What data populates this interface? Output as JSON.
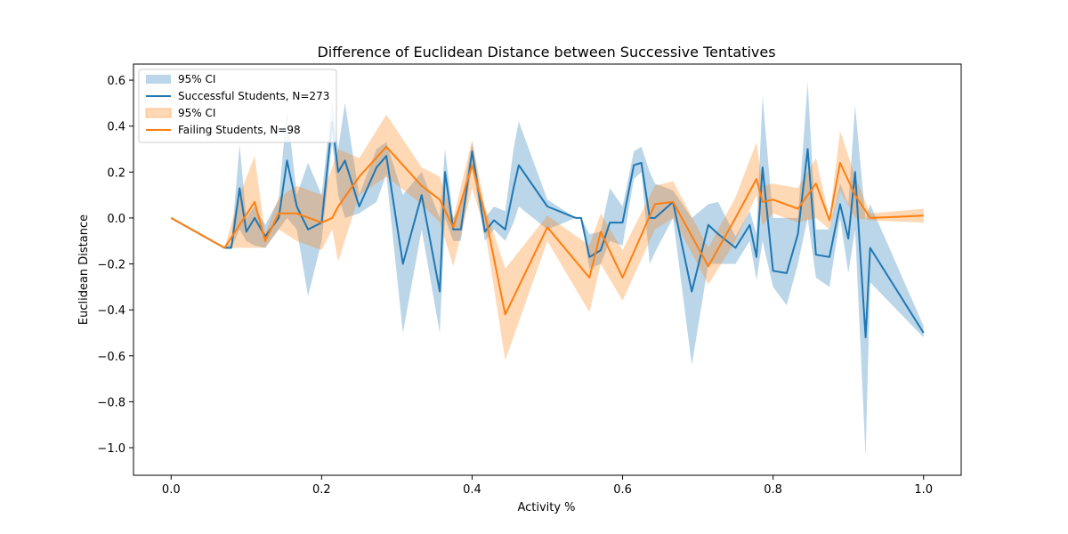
{
  "chart_data": {
    "type": "line",
    "title": "Difference of Euclidean Distance between Successive Tentatives",
    "xlabel": "Activity %",
    "ylabel": "Euclidean Distance",
    "xlim": [
      -0.05,
      1.05
    ],
    "ylim": [
      -1.12,
      0.67
    ],
    "xticks": [
      0.0,
      0.2,
      0.4,
      0.6,
      0.8,
      1.0
    ],
    "xtick_labels": [
      "0.0",
      "0.2",
      "0.4",
      "0.6",
      "0.8",
      "1.0"
    ],
    "yticks": [
      0.6,
      0.4,
      0.2,
      0.0,
      -0.2,
      -0.4,
      -0.6,
      -0.8,
      -1.0
    ],
    "ytick_labels": [
      "0.6",
      "0.4",
      "0.2",
      "0.0",
      "−0.2",
      "−0.4",
      "−0.6",
      "−0.8",
      "−1.0"
    ],
    "grid": false,
    "legend_position": "top-left",
    "series": [
      {
        "name": "Successful Students, N=273",
        "ci_label": "95% CI",
        "color": "#1f77b4",
        "x": [
          0.0,
          0.071,
          0.08,
          0.091,
          0.1,
          0.111,
          0.125,
          0.143,
          0.154,
          0.167,
          0.182,
          0.2,
          0.214,
          0.222,
          0.231,
          0.25,
          0.273,
          0.286,
          0.308,
          0.333,
          0.357,
          0.364,
          0.375,
          0.385,
          0.4,
          0.417,
          0.429,
          0.444,
          0.455,
          0.462,
          0.5,
          0.538,
          0.545,
          0.556,
          0.571,
          0.583,
          0.6,
          0.615,
          0.625,
          0.636,
          0.643,
          0.667,
          0.692,
          0.714,
          0.727,
          0.75,
          0.769,
          0.778,
          0.786,
          0.8,
          0.818,
          0.833,
          0.846,
          0.857,
          0.875,
          0.889,
          0.9,
          0.909,
          0.923,
          0.929,
          1.0
        ],
        "y": [
          0.0,
          -0.13,
          -0.13,
          0.13,
          -0.06,
          0.0,
          -0.08,
          0.0,
          0.25,
          0.05,
          -0.05,
          -0.02,
          0.42,
          0.2,
          0.25,
          0.05,
          0.22,
          0.27,
          -0.2,
          0.1,
          -0.32,
          0.2,
          -0.05,
          -0.05,
          0.29,
          -0.06,
          -0.01,
          -0.05,
          0.13,
          0.23,
          0.05,
          0.0,
          0.0,
          -0.17,
          -0.14,
          -0.02,
          -0.02,
          0.23,
          0.24,
          0.0,
          0.0,
          0.07,
          -0.32,
          -0.03,
          -0.07,
          -0.13,
          -0.03,
          -0.17,
          0.22,
          -0.23,
          -0.24,
          -0.07,
          0.3,
          -0.16,
          -0.17,
          0.06,
          -0.09,
          0.2,
          -0.52,
          -0.13,
          -0.5
        ],
        "ci_low": [
          0.0,
          -0.13,
          -0.13,
          -0.05,
          -0.1,
          -0.12,
          -0.13,
          -0.05,
          0.0,
          -0.05,
          -0.34,
          -0.1,
          0.33,
          0.1,
          0.0,
          0.02,
          0.07,
          0.19,
          -0.5,
          -0.05,
          -0.5,
          0.0,
          -0.1,
          -0.1,
          0.23,
          -0.1,
          -0.05,
          -0.1,
          -0.02,
          0.05,
          -0.05,
          0.0,
          0.0,
          -0.22,
          -0.2,
          -0.1,
          -0.12,
          0.17,
          0.2,
          -0.2,
          -0.15,
          0.0,
          -0.64,
          -0.2,
          -0.2,
          -0.2,
          -0.1,
          -0.27,
          -0.1,
          -0.3,
          -0.38,
          -0.2,
          0.0,
          -0.26,
          -0.3,
          0.0,
          -0.24,
          -0.05,
          -1.04,
          -0.28,
          -0.52
        ],
        "ci_high": [
          0.0,
          -0.13,
          -0.11,
          0.32,
          0.0,
          0.05,
          -0.03,
          0.08,
          0.48,
          0.1,
          0.24,
          0.1,
          0.52,
          0.3,
          0.5,
          0.1,
          0.3,
          0.33,
          0.1,
          0.2,
          0.0,
          0.3,
          0.0,
          0.05,
          0.33,
          0.0,
          0.05,
          0.03,
          0.3,
          0.42,
          0.08,
          0.0,
          0.0,
          -0.07,
          -0.06,
          0.13,
          0.05,
          0.29,
          0.31,
          0.2,
          0.15,
          0.12,
          0.0,
          0.06,
          0.07,
          -0.08,
          0.03,
          -0.07,
          0.53,
          0.0,
          0.0,
          0.0,
          0.59,
          -0.05,
          -0.05,
          0.15,
          0.06,
          0.49,
          -0.01,
          0.06,
          -0.47
        ]
      },
      {
        "name": "Failing Students, N=98",
        "ci_label": "95% CI",
        "color": "#ff7f0e",
        "x": [
          0.0,
          0.071,
          0.091,
          0.111,
          0.125,
          0.143,
          0.167,
          0.2,
          0.214,
          0.222,
          0.25,
          0.286,
          0.333,
          0.357,
          0.375,
          0.4,
          0.417,
          0.444,
          0.5,
          0.556,
          0.571,
          0.6,
          0.643,
          0.667,
          0.714,
          0.75,
          0.778,
          0.786,
          0.8,
          0.833,
          0.857,
          0.875,
          0.889,
          0.909,
          0.929,
          1.0
        ],
        "y": [
          0.0,
          -0.13,
          -0.03,
          0.07,
          -0.1,
          0.02,
          0.02,
          -0.02,
          0.0,
          0.05,
          0.18,
          0.31,
          0.14,
          0.08,
          -0.04,
          0.23,
          0.02,
          -0.42,
          -0.04,
          -0.26,
          -0.06,
          -0.26,
          0.06,
          0.07,
          -0.21,
          0.0,
          0.17,
          0.07,
          0.08,
          0.04,
          0.15,
          -0.01,
          0.24,
          0.1,
          0.0,
          0.01
        ],
        "ci_low": [
          0.0,
          -0.13,
          -0.13,
          -0.13,
          -0.13,
          -0.05,
          -0.1,
          -0.14,
          -0.05,
          -0.19,
          0.1,
          0.18,
          0.06,
          -0.02,
          -0.21,
          0.13,
          -0.05,
          -0.62,
          -0.1,
          -0.41,
          -0.2,
          -0.36,
          -0.05,
          0.0,
          -0.29,
          -0.1,
          0.1,
          -0.03,
          0.02,
          -0.02,
          0.0,
          -0.05,
          0.12,
          0.0,
          -0.01,
          -0.02
        ],
        "ci_high": [
          0.0,
          -0.13,
          0.1,
          0.27,
          -0.07,
          0.09,
          0.14,
          0.1,
          0.22,
          0.3,
          0.26,
          0.45,
          0.22,
          0.18,
          0.0,
          0.34,
          0.05,
          -0.22,
          0.01,
          -0.12,
          0.02,
          -0.14,
          0.14,
          0.16,
          -0.13,
          0.09,
          0.33,
          0.14,
          0.15,
          0.13,
          0.26,
          0.0,
          0.38,
          0.18,
          0.02,
          0.04
        ]
      }
    ]
  }
}
